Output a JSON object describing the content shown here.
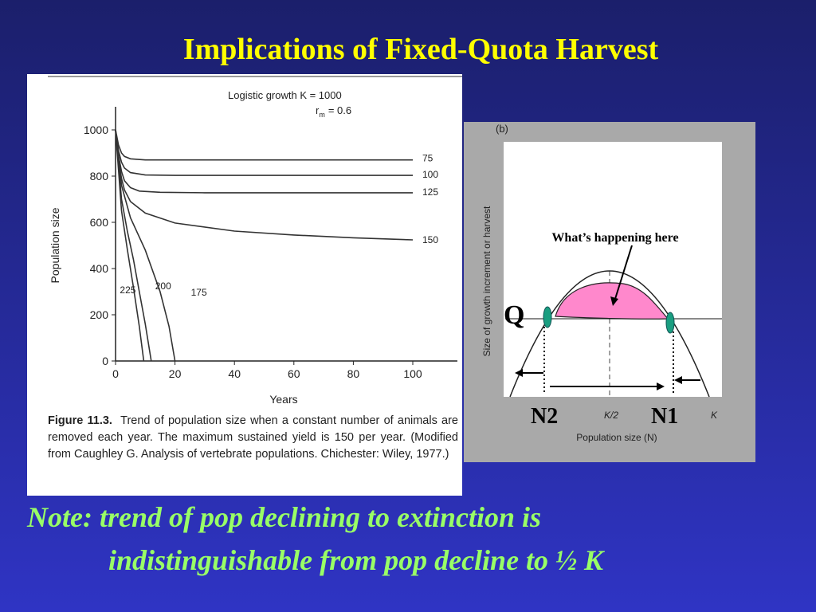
{
  "title": "Implications of Fixed-Quota Harvest",
  "chart_data": {
    "type": "line",
    "annotations": [
      "Logistic growth  K = 1000",
      "r",
      "m",
      "= 0.6"
    ],
    "x_label": "Years",
    "y_label": "Population size",
    "xlim": [
      0,
      115
    ],
    "ylim": [
      0,
      1100
    ],
    "xticks": [
      0,
      20,
      40,
      60,
      80,
      100
    ],
    "yticks": [
      0,
      200,
      400,
      600,
      800,
      1000
    ],
    "caption_label": "Figure 11.3.",
    "caption": "Trend of population size when a constant number of animals are removed each year. The maximum sustained yield is 150 per year. (Modified from Caughley G. Analysis of vertebrate populations. Chichester: Wiley, 1977.)",
    "series": [
      {
        "name": "75",
        "color": "#333333",
        "x": [
          0,
          1,
          2,
          3,
          5,
          10,
          20,
          100
        ],
        "values": [
          1000,
          935,
          900,
          885,
          875,
          870,
          870,
          870
        ]
      },
      {
        "name": "100",
        "color": "#333333",
        "x": [
          0,
          1,
          2,
          3,
          5,
          10,
          20,
          100
        ],
        "values": [
          1000,
          910,
          860,
          835,
          815,
          805,
          803,
          803
        ]
      },
      {
        "name": "125",
        "color": "#333333",
        "x": [
          0,
          1,
          2,
          3,
          5,
          8,
          15,
          30,
          100
        ],
        "values": [
          1000,
          890,
          820,
          780,
          750,
          735,
          730,
          728,
          728
        ]
      },
      {
        "name": "150",
        "color": "#333333",
        "x": [
          0,
          1,
          2,
          3,
          5,
          10,
          20,
          40,
          60,
          80,
          100
        ],
        "values": [
          1000,
          870,
          790,
          740,
          690,
          640,
          597,
          562,
          545,
          533,
          524
        ]
      },
      {
        "name": "175",
        "color": "#333333",
        "x": [
          0,
          2,
          5,
          10,
          15,
          18,
          20
        ],
        "values": [
          1000,
          760,
          620,
          480,
          300,
          150,
          0
        ]
      },
      {
        "name": "200",
        "color": "#333333",
        "x": [
          0,
          2,
          4,
          6,
          8,
          10,
          12
        ],
        "values": [
          1000,
          700,
          560,
          440,
          300,
          160,
          0
        ]
      },
      {
        "name": "225",
        "color": "#333333",
        "x": [
          0,
          2,
          4,
          6,
          8,
          9.5
        ],
        "values": [
          1000,
          650,
          480,
          320,
          150,
          0
        ]
      }
    ]
  },
  "diagram": {
    "panel": "(b)",
    "y_label": "Size of growth increment or harvest",
    "x_label": "Population size (N)",
    "half_k": "K/2",
    "k": "K",
    "callout": "What’s happening here",
    "q": "Q",
    "n2": "N2",
    "n1": "N1"
  },
  "note": [
    "Note: trend of pop declining to extinction is",
    "indistinguishable from pop decline to ½ K"
  ]
}
